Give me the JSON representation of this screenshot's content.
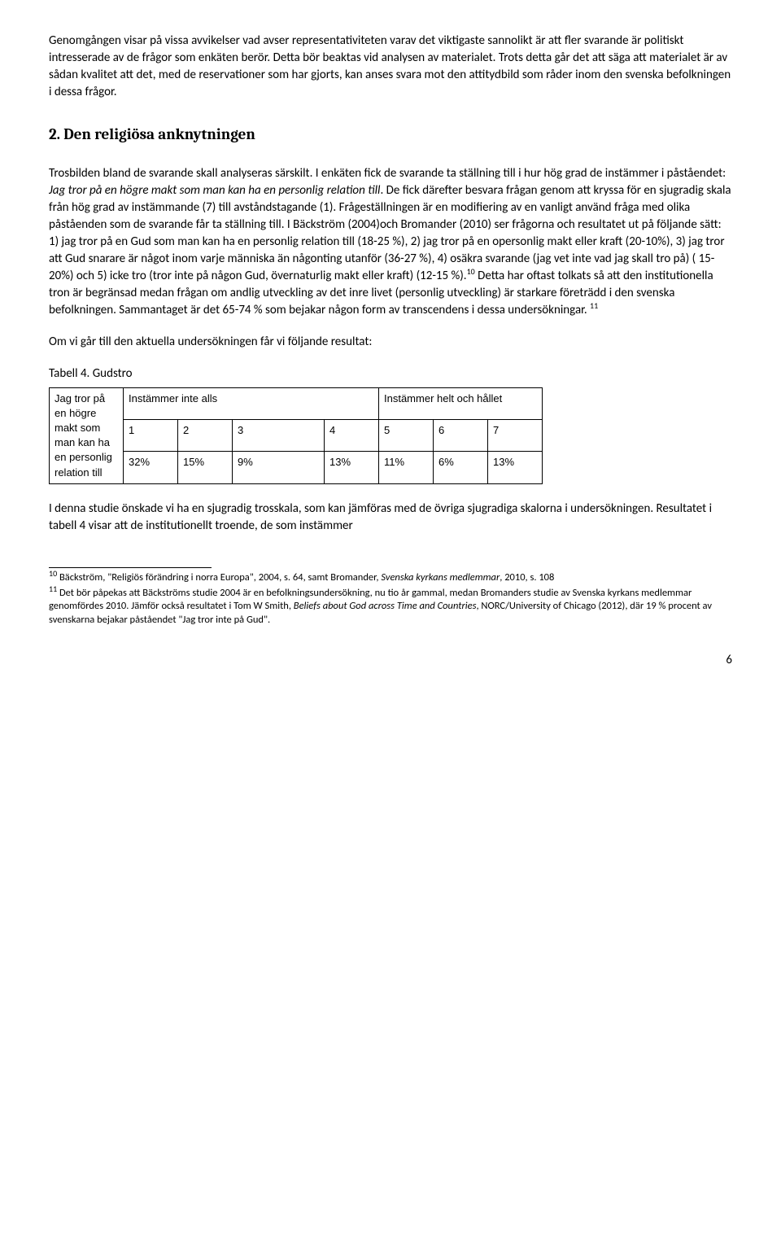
{
  "para1": "Genomgången visar på vissa avvikelser vad avser representativiteten varav det viktigaste sannolikt är att fler svarande är politiskt intresserade av de frågor som enkäten berör. Detta bör beaktas vid analysen av materialet. Trots detta går det att säga att materialet är av sådan kvalitet att det, med de reservationer som har gjorts, kan anses svara mot den attitydbild som råder inom den svenska befolkningen i dessa frågor.",
  "heading": "2. Den religiösa anknytningen",
  "para2a": "Trosbilden bland de svarande skall analyseras särskilt. I enkäten fick de svarande ta ställning till i hur hög grad de instämmer i påståendet: ",
  "para2italic": "Jag tror på en högre makt som man kan ha en personlig relation till",
  "para2b": ". De fick därefter besvara frågan genom att kryssa för en sjugradig skala från hög grad av instämmande (7) till avståndstagande (1). Frågeställningen är en modifiering av en vanligt använd fråga med olika påståenden som de svarande får ta ställning till. I Bäckström (2004)och Bromander (2010) ser frågorna och resultatet ut på följande sätt: 1) jag tror på en Gud som man kan ha en personlig relation till (18-25 %), 2) jag tror på en opersonlig makt eller kraft (20-10%), 3) jag tror att Gud snarare är något inom varje människa än någonting utanför (36-27 %), 4) osäkra svarande (jag vet inte vad jag skall tro på) ( 15-20%) och 5) icke tro (tror inte på någon Gud, övernaturlig makt eller kraft) (12-15 %).",
  "sup10": "10",
  "para2c": "  Detta har oftast tolkats så att den institutionella tron är begränsad medan frågan om andlig utveckling av det inre livet (personlig utveckling) är starkare företrädd i den svenska befolkningen. Sammantaget är det 65-74 % som bejakar någon form av transcendens i dessa undersökningar. ",
  "sup11": "11",
  "para3": "Om vi går till den aktuella undersökningen får vi följande resultat:",
  "tableTitle": "Tabell 4. Gudstro",
  "table": {
    "rowLabel": "Jag tror på en högre makt som man kan ha en personlig relation till",
    "leftHead": "Instämmer inte alls",
    "rightHead": "Instämmer helt och hållet",
    "cols": [
      "1",
      "2",
      "3",
      "4",
      "5",
      "6",
      "7"
    ],
    "vals": [
      "32%",
      "15%",
      "9%",
      "13%",
      "11%",
      "6%",
      "13%"
    ]
  },
  "para4": "I denna studie önskade vi ha en sjugradig trosskala, som kan jämföras med de övriga sjugradiga skalorna i undersökningen. Resultatet i tabell 4 visar att de institutionellt troende, de som instämmer",
  "fn10a": " Bäckström, \"Religiös förändring i norra Europa\", 2004, s. 64, samt Bromander, ",
  "fn10italic": "Svenska kyrkans medlemmar",
  "fn10b": ", 2010, s. 108",
  "fn11a": " Det bör påpekas att Bäckströms studie 2004 är en befolkningsundersökning, nu tio år gammal, medan Bromanders studie av Svenska kyrkans medlemmar genomfördes 2010. Jämför också resultatet i Tom W Smith, ",
  "fn11italic": "Beliefs about God across Time and Countries",
  "fn11b": ", NORC/University of Chicago (2012), där 19 % procent av svenskarna bejakar påståendet \"Jag tror inte på Gud\".",
  "pageNum": "6"
}
